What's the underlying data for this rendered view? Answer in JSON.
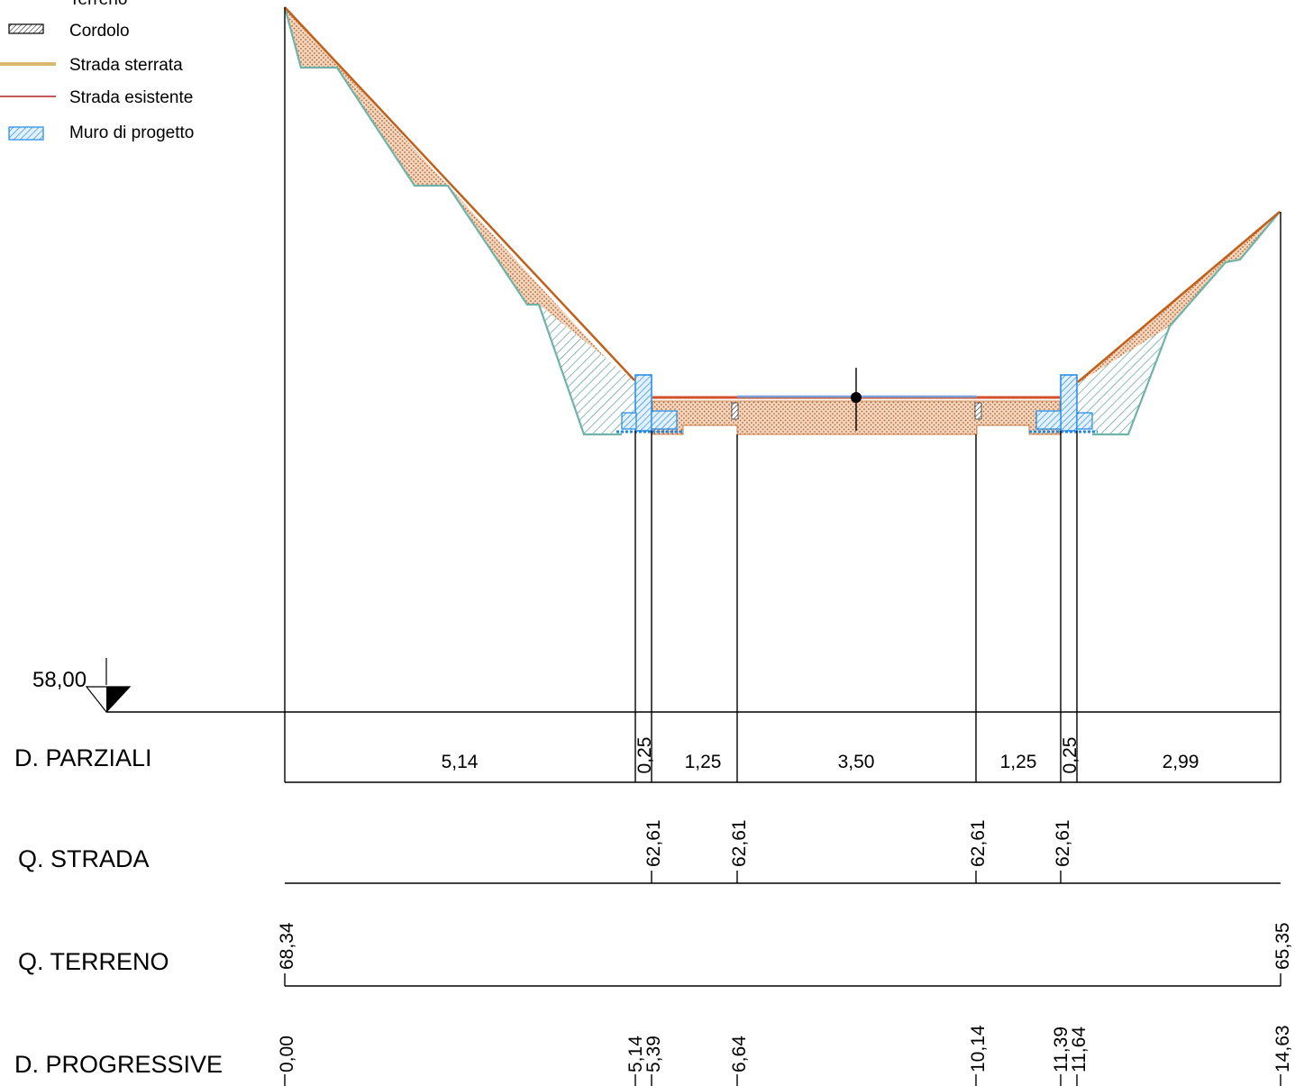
{
  "legend": {
    "items": [
      {
        "label": "Terreno",
        "swatch": "hatch-dots"
      },
      {
        "label": "Cordolo",
        "swatch": "hatch-black"
      },
      {
        "label": "Strada sterrata",
        "swatch": "line",
        "color": "#d9b870"
      },
      {
        "label": "Strada esistente",
        "swatch": "line",
        "color": "#b22222"
      },
      {
        "label": "Muro di progetto",
        "swatch": "hatch-blue",
        "color": "#1e88e5"
      }
    ]
  },
  "datum": {
    "label": "58,00"
  },
  "rows": {
    "parziali": {
      "title": "D. PARZIALI",
      "values": [
        "5,14",
        "0,25",
        "1,25",
        "3,50",
        "1,25",
        "0,25",
        "2,99"
      ]
    },
    "strada": {
      "title": "Q. STRADA",
      "values": [
        "62,61",
        "62,61",
        "62,61",
        "62,61"
      ]
    },
    "terreno": {
      "title": "Q. TERRENO",
      "values": [
        "68,34",
        "65,35"
      ]
    },
    "progressive": {
      "title": "D. PROGRESSIVE",
      "values": [
        "0,00",
        "5,14",
        "5,39",
        "6,64",
        "10,14",
        "11,39",
        "11,64",
        "14,63"
      ]
    }
  },
  "colors": {
    "terrain_line": "#6fb3a8",
    "ground_profile": "#c0601a",
    "fill_dots": "#f0c8a8",
    "muro": "#1e88e5",
    "road_blue": "#7aa0d8",
    "road_red": "#d0502a"
  }
}
